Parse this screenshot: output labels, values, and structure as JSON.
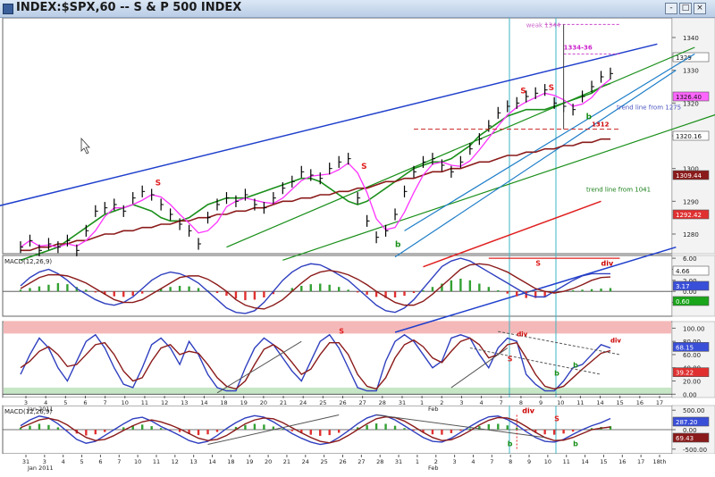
{
  "window": {
    "title": "INDEX:$SPX,60 -- S & P 500 INDEX",
    "buttons": [
      "-",
      "□",
      "×"
    ]
  },
  "chart_data": [
    {
      "type": "line",
      "panel": "price",
      "ylim": [
        1274,
        1346
      ],
      "right_axis_ticks": [
        1340,
        1330,
        1320,
        1310,
        1300,
        1290,
        1280
      ],
      "right_badges": [
        {
          "value": "1329",
          "color": "#ffffff"
        },
        {
          "value": "1326.40",
          "color": "#ff66ff"
        },
        {
          "value": "1320.16",
          "color": "#ffffff"
        },
        {
          "value": "1309.44",
          "color": "#8b1a1a"
        },
        {
          "value": "1292.42",
          "color": "#e03030"
        }
      ],
      "annotations": [
        "weak 1344",
        "1334-36",
        "1312",
        "trend line from 1275",
        "trend line from 1041",
        "S",
        "S",
        "S",
        "S",
        "b",
        "b"
      ],
      "series": [
        {
          "values": [
            1276,
            1278,
            1275,
            1277,
            1276,
            1278,
            1275,
            1281,
            1287,
            1288,
            1289,
            1287,
            1291,
            1293,
            1292,
            1289,
            1286,
            1283,
            1281,
            1277,
            1285,
            1289,
            1291,
            1290,
            1292,
            1289,
            1288,
            1291,
            1294,
            1296,
            1299,
            1298,
            1297,
            1300,
            1302,
            1303,
            1291,
            1284,
            1279,
            1281,
            1286,
            1293,
            1299,
            1302,
            1303,
            1301,
            1299,
            1302,
            1306,
            1309,
            1313,
            1317,
            1319,
            1320,
            1322,
            1323,
            1324,
            1320,
            1319,
            1318,
            1322,
            1325,
            1328,
            1329
          ]
        },
        {
          "name": "",
          "values": [
            1272,
            1273,
            1274,
            1275,
            1276,
            1278,
            1280,
            1282,
            1284,
            1286,
            1287,
            1288,
            1289,
            1288,
            1287,
            1285,
            1284,
            1284,
            1285,
            1287,
            1289,
            1290,
            1291,
            1291,
            1291,
            1292,
            1293,
            1294,
            1295,
            1296,
            1297,
            1297,
            1296,
            1294,
            1292,
            1290,
            1289,
            1290,
            1292,
            1294,
            1296,
            1298,
            1300,
            1301,
            1302,
            1302,
            1303,
            1305,
            1307,
            1310,
            1312,
            1314,
            1316,
            1317,
            1318,
            1318,
            1318,
            1319,
            1320,
            1321,
            1322,
            1323,
            1325,
            1326
          ]
        },
        {
          "name": "",
          "values": [
            1275,
            1275,
            1276,
            1276,
            1277,
            1277,
            1278,
            1278,
            1279,
            1280,
            1280,
            1281,
            1281,
            1282,
            1282,
            1283,
            1283,
            1284,
            1284,
            1285,
            1285,
            1286,
            1286,
            1287,
            1287,
            1288,
            1288,
            1289,
            1290,
            1290,
            1291,
            1291,
            1292,
            1292,
            1293,
            1293,
            1294,
            1294,
            1295,
            1296,
            1296,
            1297,
            1297,
            1298,
            1299,
            1299,
            1300,
            1300,
            1301,
            1302,
            1302,
            1303,
            1304,
            1304,
            1305,
            1305,
            1306,
            1306,
            1307,
            1307,
            1308,
            1308,
            1309,
            1309
          ]
        }
      ]
    },
    {
      "type": "bar",
      "panel": "MACD(12,26,9)",
      "ylim": [
        -4.5,
        6.5
      ],
      "right_axis_ticks": [
        6.0,
        4.0,
        2.0,
        0.0,
        -2.0
      ],
      "right_badges": [
        {
          "value": "4.66",
          "color": "#ffffff"
        },
        {
          "value": "3.17",
          "color": "#3a4fd8"
        },
        {
          "value": "0.60",
          "color": "#1aa51a"
        }
      ],
      "annotations": [
        "S",
        "div"
      ],
      "histogram": [
        0.3,
        0.6,
        0.9,
        1.2,
        1.5,
        1.3,
        0.8,
        0.3,
        -0.2,
        -0.6,
        -0.9,
        -1.0,
        -0.8,
        -0.4,
        0.1,
        0.5,
        0.8,
        1.0,
        0.9,
        0.6,
        0.2,
        -0.3,
        -0.8,
        -1.3,
        -1.6,
        -1.5,
        -1.1,
        -0.5,
        0.1,
        0.6,
        1.0,
        1.3,
        1.4,
        1.2,
        0.8,
        0.3,
        -0.2,
        -0.6,
        -1.0,
        -1.2,
        -1.1,
        -0.8,
        -0.3,
        0.2,
        0.8,
        1.4,
        2.0,
        2.3,
        2.0,
        1.4,
        0.8,
        0.2,
        -0.4,
        -0.9,
        -1.2,
        -1.2,
        -0.9,
        -0.4,
        0.0,
        0.2,
        0.3,
        0.4,
        0.5,
        0.6
      ],
      "series": [
        {
          "values": [
            1.0,
            2.5,
            3.5,
            4.0,
            3.2,
            2.0,
            0.5,
            -0.5,
            -1.5,
            -2.2,
            -2.5,
            -2.0,
            -1.0,
            0.5,
            2.0,
            3.0,
            3.5,
            3.2,
            2.5,
            1.5,
            0.0,
            -1.5,
            -3.0,
            -3.8,
            -4.0,
            -3.5,
            -2.0,
            0.0,
            2.0,
            3.5,
            4.5,
            5.0,
            4.8,
            4.0,
            3.0,
            2.0,
            0.5,
            -1.0,
            -2.5,
            -3.5,
            -3.8,
            -3.0,
            -1.5,
            0.5,
            2.5,
            4.5,
            5.5,
            6.0,
            5.5,
            4.5,
            3.5,
            2.5,
            1.5,
            0.5,
            -0.5,
            -1.0,
            -1.0,
            0.0,
            1.0,
            2.0,
            2.8,
            3.2,
            3.2,
            3.2
          ]
        },
        {
          "values": [
            0.5,
            1.5,
            2.5,
            3.0,
            3.0,
            2.8,
            2.2,
            1.5,
            0.5,
            -0.5,
            -1.5,
            -2.0,
            -2.0,
            -1.5,
            -0.5,
            0.5,
            1.5,
            2.5,
            2.8,
            2.8,
            2.2,
            1.2,
            0.0,
            -1.5,
            -2.5,
            -3.0,
            -3.2,
            -2.5,
            -1.5,
            0.0,
            1.5,
            2.8,
            3.5,
            3.8,
            3.5,
            3.0,
            2.2,
            1.2,
            0.0,
            -1.0,
            -2.0,
            -2.5,
            -2.5,
            -1.8,
            -0.5,
            1.0,
            2.5,
            4.0,
            4.8,
            5.0,
            4.8,
            4.2,
            3.5,
            2.5,
            1.5,
            0.5,
            0.0,
            -0.3,
            0.0,
            0.5,
            1.2,
            2.0,
            2.5,
            2.6
          ]
        }
      ]
    },
    {
      "type": "line",
      "panel": "stochastic",
      "ylim": [
        -5,
        110
      ],
      "right_axis_ticks": [
        100.0,
        80.0,
        60.0,
        40.0,
        20.0,
        0.0
      ],
      "right_badges": [
        {
          "value": "68.15",
          "color": "#3a4fd8"
        },
        {
          "value": "39.22",
          "color": "#e03030"
        }
      ],
      "annotations": [
        "S",
        "div",
        "S",
        "b",
        "b",
        "div"
      ],
      "series": [
        {
          "values": [
            30,
            60,
            85,
            70,
            40,
            20,
            50,
            80,
            90,
            70,
            40,
            15,
            10,
            40,
            75,
            85,
            70,
            45,
            80,
            60,
            30,
            10,
            5,
            5,
            40,
            70,
            85,
            75,
            55,
            35,
            20,
            50,
            80,
            90,
            70,
            40,
            10,
            5,
            5,
            50,
            80,
            90,
            80,
            60,
            40,
            50,
            85,
            90,
            85,
            60,
            40,
            70,
            85,
            80,
            30,
            15,
            5,
            5,
            20,
            40,
            45,
            60,
            75,
            70
          ]
        },
        {
          "values": [
            40,
            50,
            65,
            72,
            60,
            42,
            45,
            60,
            75,
            78,
            60,
            35,
            20,
            25,
            50,
            70,
            75,
            60,
            65,
            62,
            45,
            25,
            12,
            8,
            20,
            45,
            68,
            75,
            65,
            48,
            30,
            38,
            60,
            78,
            78,
            60,
            30,
            12,
            8,
            25,
            55,
            75,
            82,
            72,
            55,
            48,
            65,
            80,
            85,
            75,
            55,
            60,
            75,
            78,
            55,
            30,
            12,
            8,
            12,
            25,
            38,
            50,
            62,
            66
          ]
        }
      ]
    },
    {
      "type": "line",
      "panel": "MACD(12,26,9)",
      "ylim": [
        -620,
        620
      ],
      "right_axis_ticks": [
        500.0,
        0.0,
        -500.0
      ],
      "right_badges": [
        {
          "value": "287.20",
          "color": "#3a4fd8"
        },
        {
          "value": "69.43",
          "color": "#8b1a1a"
        }
      ],
      "annotations": [
        "div",
        "S",
        "b",
        "b"
      ],
      "histogram": [
        50,
        100,
        150,
        120,
        60,
        -20,
        -100,
        -150,
        -120,
        -60,
        0,
        60,
        110,
        130,
        90,
        40,
        -10,
        -60,
        -110,
        -140,
        -120,
        -60,
        10,
        70,
        120,
        150,
        130,
        80,
        20,
        -40,
        -90,
        -130,
        -160,
        -140,
        -80,
        -10,
        60,
        120,
        160,
        150,
        100,
        40,
        -20,
        -80,
        -120,
        -130,
        -90,
        -30,
        30,
        90,
        140,
        150,
        110,
        50,
        -20,
        -80,
        -120,
        -130,
        -100,
        -50,
        0,
        40,
        70,
        90
      ],
      "series": [
        {
          "values": [
            100,
            250,
            350,
            300,
            150,
            -50,
            -250,
            -350,
            -300,
            -150,
            0,
            150,
            280,
            320,
            220,
            80,
            -30,
            -150,
            -280,
            -350,
            -300,
            -150,
            30,
            180,
            300,
            360,
            320,
            200,
            50,
            -100,
            -220,
            -320,
            -380,
            -340,
            -200,
            -30,
            150,
            300,
            380,
            350,
            250,
            100,
            -50,
            -200,
            -300,
            -320,
            -220,
            -70,
            80,
            220,
            330,
            350,
            260,
            120,
            -50,
            -200,
            -300,
            -320,
            -250,
            -120,
            0,
            100,
            180,
            287
          ]
        },
        {
          "values": [
            50,
            150,
            250,
            290,
            240,
            120,
            -50,
            -200,
            -280,
            -250,
            -150,
            -20,
            100,
            200,
            250,
            200,
            120,
            20,
            -100,
            -220,
            -280,
            -250,
            -150,
            0,
            150,
            250,
            300,
            280,
            180,
            50,
            -80,
            -200,
            -300,
            -340,
            -280,
            -150,
            0,
            150,
            280,
            330,
            310,
            220,
            80,
            -70,
            -200,
            -280,
            -260,
            -160,
            -30,
            120,
            240,
            310,
            300,
            220,
            80,
            -70,
            -200,
            -280,
            -270,
            -200,
            -100,
            0,
            40,
            69
          ]
        }
      ]
    }
  ],
  "x_axis_top": {
    "labels": [
      "3",
      "4",
      "5",
      "6",
      "7",
      "10",
      "11",
      "12",
      "13",
      "14",
      "18",
      "19",
      "20",
      "21",
      "24",
      "25",
      "26",
      "27",
      "28",
      "31",
      "1",
      "2",
      "3",
      "4",
      "7",
      "8",
      "9",
      "10",
      "11",
      "14",
      "15",
      "16",
      "17"
    ],
    "period_labels": [
      "Jan 2011",
      "Feb"
    ]
  },
  "x_axis_bottom": {
    "labels": [
      "31",
      "3",
      "4",
      "5",
      "6",
      "7",
      "10",
      "11",
      "12",
      "13",
      "14",
      "18",
      "19",
      "20",
      "21",
      "24",
      "25",
      "26",
      "27",
      "28",
      "31",
      "1",
      "2",
      "3",
      "4",
      "7",
      "8",
      "9",
      "10",
      "11",
      "14",
      "15",
      "16",
      "17",
      "18th"
    ],
    "period_labels": [
      "Jan 2011",
      "Feb"
    ]
  },
  "colors": {
    "price_bars": "#000000",
    "ma_fast": "#ff33ff",
    "ma_mid": "#1a8f1a",
    "ma_slow": "#8b1a1a",
    "channel_blue": "#1f3fcc",
    "trend_cyan": "#1e7ec8",
    "trend_green": "#1aa51a",
    "red_line": "#e02020",
    "macd_blue": "#2f3fbf",
    "signal_red": "#8b1a1a",
    "hist_green": "#33a033",
    "hist_red": "#e03030",
    "vline": "#3fb6c4"
  }
}
